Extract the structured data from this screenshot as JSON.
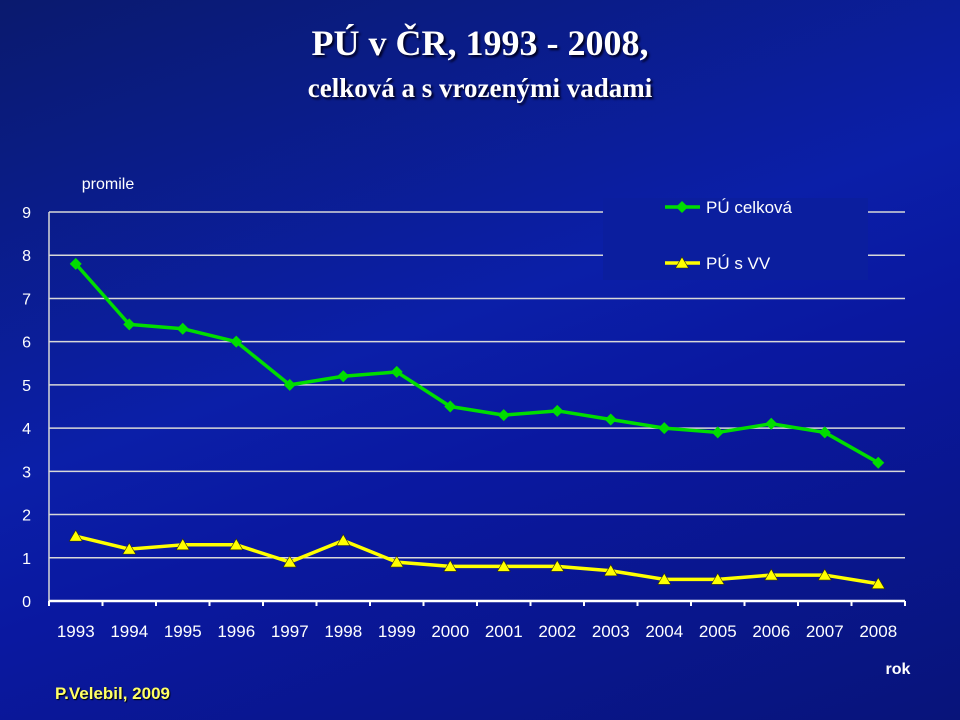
{
  "header": {
    "title": "PÚ v ČR, 1993 - 2008,",
    "subtitle": "celková a s vrozenými vadami"
  },
  "footer": {
    "credit": "P.Velebil, 2009"
  },
  "chart_data": {
    "type": "line",
    "ylabel": "promile",
    "xlabel": "rok",
    "ylim": [
      0,
      9
    ],
    "yticks": [
      "0",
      "1",
      "2",
      "3",
      "4",
      "5",
      "6",
      "7",
      "8",
      "9"
    ],
    "grid": true,
    "legend_position": "top-right",
    "categories": [
      "1993",
      "1994",
      "1995",
      "1996",
      "1997",
      "1998",
      "1999",
      "2000",
      "2001",
      "2002",
      "2003",
      "2004",
      "2005",
      "2006",
      "2007",
      "2008"
    ],
    "series": [
      {
        "name": "PÚ celková",
        "color": "#00dd00",
        "marker": "diamond",
        "values": [
          7.8,
          6.4,
          6.3,
          6.0,
          5.0,
          5.2,
          5.3,
          4.5,
          4.3,
          4.4,
          4.2,
          4.0,
          3.9,
          4.1,
          3.9,
          3.2
        ]
      },
      {
        "name": "PÚ s VV",
        "color": "#ffff00",
        "marker": "triangle",
        "values": [
          1.5,
          1.2,
          1.3,
          1.3,
          0.9,
          1.4,
          0.9,
          0.8,
          0.8,
          0.8,
          0.7,
          0.5,
          0.5,
          0.6,
          0.6,
          0.4
        ]
      }
    ]
  }
}
